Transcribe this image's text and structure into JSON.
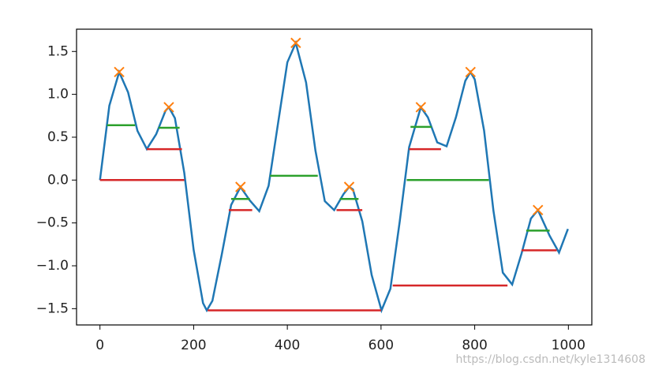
{
  "chart_data": {
    "type": "peaks",
    "xlim": [
      -50,
      1050
    ],
    "ylim": [
      -1.69,
      1.76
    ],
    "xticks": [
      0,
      200,
      400,
      600,
      800,
      1000
    ],
    "yticks": [
      1.5,
      1.0,
      0.5,
      0.0,
      -0.5,
      -1.0,
      -1.5
    ],
    "ytick_labels": [
      "1.5",
      "1.0",
      "0.5",
      "0.0",
      "−0.5",
      "−1.0",
      "−1.5"
    ],
    "line": {
      "color": "#1f77b4",
      "x": [
        0,
        20,
        41,
        60,
        80,
        100,
        120,
        140,
        147,
        160,
        180,
        200,
        220,
        228,
        240,
        260,
        280,
        300,
        320,
        340,
        360,
        380,
        400,
        418,
        440,
        460,
        480,
        500,
        520,
        532,
        540,
        560,
        580,
        601,
        620,
        640,
        660,
        685,
        700,
        720,
        740,
        760,
        780,
        791,
        800,
        820,
        840,
        860,
        880,
        900,
        920,
        935,
        960,
        980,
        999
      ],
      "values": [
        0,
        0.867,
        1.26,
        1.024,
        0.575,
        0.362,
        0.535,
        0.81,
        0.85,
        0.722,
        0.084,
        -0.815,
        -1.435,
        -1.52,
        -1.409,
        -0.869,
        -0.291,
        -0.08,
        -0.238,
        -0.363,
        -0.067,
        0.656,
        1.373,
        1.6,
        1.138,
        0.344,
        -0.246,
        -0.35,
        -0.163,
        -0.08,
        -0.109,
        -0.481,
        -1.107,
        -1.52,
        -1.268,
        -0.481,
        0.383,
        0.85,
        0.732,
        0.439,
        0.394,
        0.734,
        1.159,
        1.26,
        1.175,
        0.578,
        -0.358,
        -1.08,
        -1.218,
        -0.857,
        -0.449,
        -0.35,
        -0.65,
        -0.846,
        -0.57
      ]
    },
    "peaks": {
      "color": "#ff7f0e",
      "x": [
        41,
        147,
        300,
        418,
        532,
        685,
        791,
        935
      ],
      "values": [
        1.26,
        0.85,
        -0.08,
        1.6,
        -0.08,
        0.85,
        1.26,
        -0.35
      ]
    },
    "half_widths": {
      "color": "#2ca02c",
      "values": [
        0.64,
        0.61,
        -0.22,
        0.05,
        -0.22,
        0.62,
        0.0,
        -0.59
      ],
      "xmin": [
        15,
        125,
        280,
        363,
        512,
        663,
        655,
        910
      ],
      "xmax": [
        75,
        170,
        320,
        465,
        552,
        708,
        830,
        960
      ]
    },
    "full_widths": {
      "color": "#d62728",
      "values": [
        0,
        0.36,
        -0.35,
        -1.52,
        -0.35,
        0.36,
        -1.23,
        -0.82
      ],
      "xmin": [
        0,
        100,
        275,
        230,
        505,
        660,
        625,
        900
      ],
      "xmax": [
        180,
        175,
        325,
        600,
        560,
        728,
        870,
        975
      ]
    },
    "watermark": "https://blog.csdn.net/kyle1314608"
  }
}
